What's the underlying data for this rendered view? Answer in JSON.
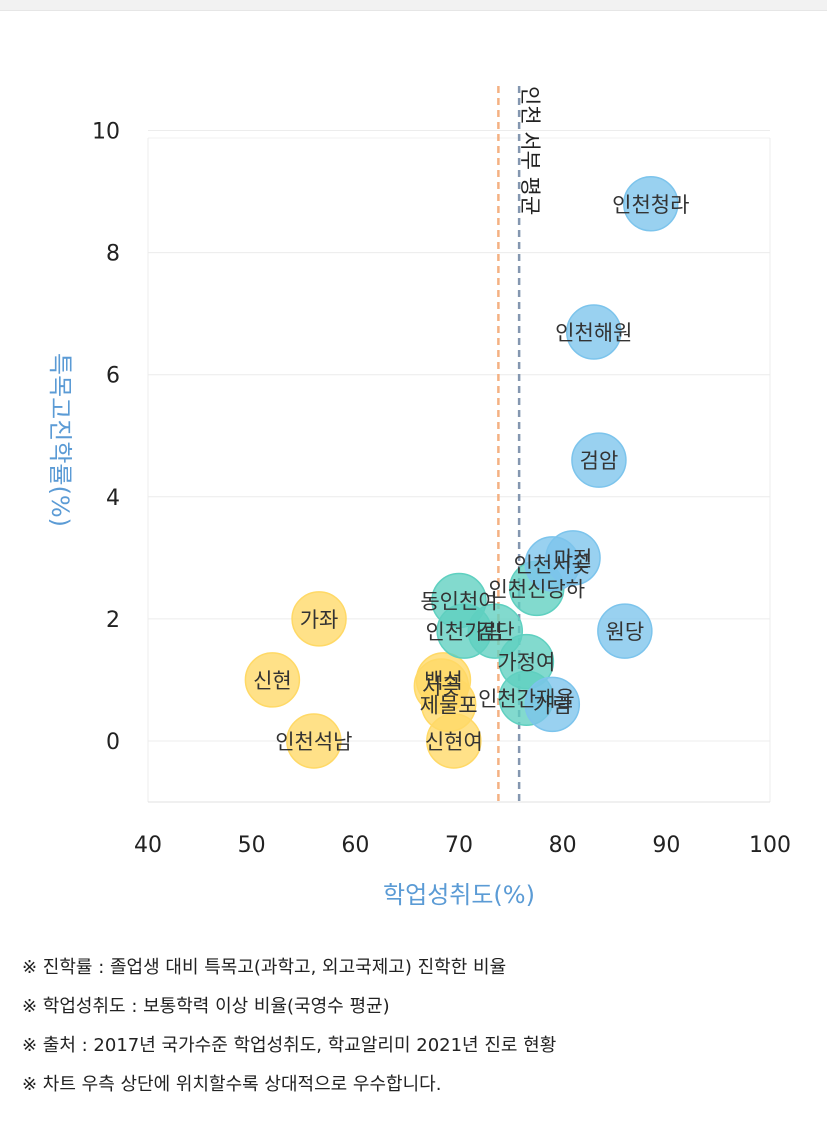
{
  "chart_data": {
    "type": "scatter",
    "xlabel": "학업성취도(%)",
    "ylabel": "특목고진학률(%)",
    "xlim": [
      40,
      100
    ],
    "ylim": [
      -1,
      10.5
    ],
    "x_ticks": [
      40,
      50,
      60,
      70,
      80,
      90,
      100
    ],
    "y_ticks": [
      0,
      2,
      4,
      6,
      8,
      10
    ],
    "grid": true,
    "reference_lines": [
      {
        "axis": "x",
        "value": 73.8,
        "color": "#f4b183",
        "label": ""
      },
      {
        "axis": "x",
        "value": 75.8,
        "color": "#8497b0",
        "label": "인천 서부 평균"
      }
    ],
    "groups": [
      {
        "color": "#ffd966",
        "points": [
          {
            "x": 56.5,
            "y": 2.0,
            "label": "가좌"
          },
          {
            "x": 52.0,
            "y": 1.0,
            "label": "신현"
          },
          {
            "x": 56.0,
            "y": 0.0,
            "label": "인천석남"
          },
          {
            "x": 68.5,
            "y": 1.0,
            "label": "백석"
          },
          {
            "x": 68.3,
            "y": 0.9,
            "label": "서곶"
          },
          {
            "x": 69.0,
            "y": 0.6,
            "label": "제물포"
          },
          {
            "x": 69.5,
            "y": 0.0,
            "label": "신현여"
          }
        ]
      },
      {
        "color": "#5fd0c0",
        "points": [
          {
            "x": 70.0,
            "y": 2.3,
            "label": "동인천여"
          },
          {
            "x": 70.5,
            "y": 1.8,
            "label": "인천가림"
          },
          {
            "x": 73.5,
            "y": 1.8,
            "label": "검단"
          },
          {
            "x": 76.5,
            "y": 1.3,
            "label": "가정여"
          },
          {
            "x": 76.5,
            "y": 0.7,
            "label": "인천간재울"
          },
          {
            "x": 77.5,
            "y": 2.5,
            "label": "인천신당하"
          }
        ]
      },
      {
        "color": "#7cc4ec",
        "points": [
          {
            "x": 88.5,
            "y": 8.8,
            "label": "인천청라"
          },
          {
            "x": 83.0,
            "y": 6.7,
            "label": "인천해원"
          },
          {
            "x": 83.5,
            "y": 4.6,
            "label": "검암"
          },
          {
            "x": 86.0,
            "y": 1.8,
            "label": "원당"
          },
          {
            "x": 81.0,
            "y": 3.0,
            "label": "마전"
          },
          {
            "x": 79.0,
            "y": 2.9,
            "label": "인천서곶"
          },
          {
            "x": 79.0,
            "y": 0.6,
            "label": "가림"
          }
        ]
      }
    ]
  },
  "notes": [
    "※ 진학률 : 졸업생 대비 특목고(과학고, 외고국제고) 진학한 비율",
    "※ 학업성취도 : 보통학력 이상 비율(국영수 평균)",
    "※ 출처 : 2017년 국가수준 학업성취도, 학교알리미 2021년 진로 현황",
    "※ 차트 우측 상단에 위치할수록 상대적으로 우수합니다."
  ]
}
